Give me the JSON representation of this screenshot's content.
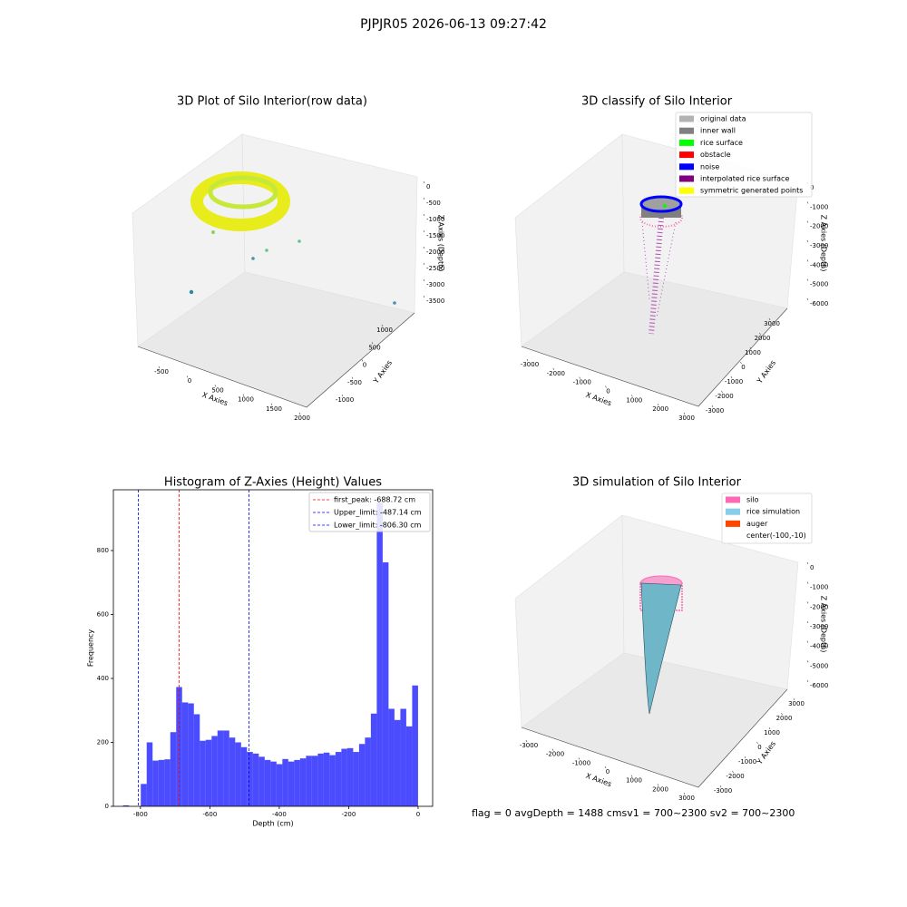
{
  "title": "PJPJR05 2026-06-13 09:27:42",
  "footer": "flag = 0     avgDepth = 1488 cmsv1 = 700~2300  sv2 = 700~2300",
  "chart_data": [
    {
      "type": "scatter3d",
      "title": "3D Plot of Silo Interior(row data)",
      "xlabel": "X Axies",
      "ylabel": "Y Axies",
      "zlabel": "Z Axies (Depth)",
      "xticks": [
        -500,
        0,
        500,
        1000,
        1500,
        2000
      ],
      "yticks": [
        -1000,
        -500,
        0,
        500,
        1000
      ],
      "zticks": [
        0,
        -500,
        -1000,
        -1500,
        -2000,
        -2500,
        -3000,
        -3500
      ]
    },
    {
      "type": "scatter3d",
      "title": "3D classify of Silo Interior",
      "xlabel": "X Axies",
      "ylabel": "Y Axies",
      "zlabel": "Z Axies (Depth)",
      "xticks": [
        -3000,
        -2000,
        -1000,
        0,
        1000,
        2000,
        3000
      ],
      "yticks": [
        -3000,
        -2000,
        -1000,
        0,
        1000,
        2000,
        3000
      ],
      "zticks": [
        0,
        -1000,
        -2000,
        -3000,
        -4000,
        -5000,
        -6000
      ],
      "legend": [
        {
          "name": "original data",
          "color": "#b3b3b3"
        },
        {
          "name": "inner wall",
          "color": "#808080"
        },
        {
          "name": "rice surface",
          "color": "#00ff00"
        },
        {
          "name": "obstacle",
          "color": "#ff0000"
        },
        {
          "name": "noise",
          "color": "#0000ff"
        },
        {
          "name": "interpolated rice surface",
          "color": "#800080"
        },
        {
          "name": "symmetric generated points",
          "color": "#ffff00"
        }
      ]
    },
    {
      "type": "histogram",
      "title": "Histogram of Z-Axies (Height) Values",
      "xlabel": "Depth (cm)",
      "ylabel": "Frequency",
      "color": "#0000ff",
      "bins": [
        -850,
        -833,
        -816,
        -799,
        -782,
        -765,
        -748,
        -731,
        -714,
        -697,
        -680,
        -663,
        -646,
        -629,
        -612,
        -595,
        -578,
        -561,
        -544,
        -527,
        -510,
        -493,
        -476,
        -459,
        -442,
        -425,
        -408,
        -391,
        -374,
        -357,
        -340,
        -323,
        -306,
        -289,
        -272,
        -255,
        -238,
        -221,
        -204,
        -187,
        -170,
        -153,
        -136,
        -119,
        -102,
        -85,
        -68,
        -51,
        -34,
        -17,
        0
      ],
      "values": [
        3,
        0,
        0,
        70,
        200,
        143,
        145,
        147,
        232,
        373,
        325,
        322,
        288,
        205,
        208,
        220,
        237,
        237,
        215,
        200,
        185,
        170,
        165,
        155,
        145,
        140,
        132,
        148,
        140,
        145,
        150,
        158,
        158,
        165,
        168,
        160,
        170,
        180,
        182,
        170,
        195,
        215,
        290,
        950,
        763,
        305,
        270,
        305,
        250,
        378
      ],
      "xlim": [
        -878,
        42
      ],
      "ylim": [
        0,
        990
      ],
      "xticks": [
        -800,
        -600,
        -400,
        -200,
        0
      ],
      "yticks": [
        0,
        200,
        400,
        600,
        800
      ],
      "vlines": [
        {
          "value": -688.72,
          "label": "first_peak: -688.72 cm",
          "color": "#ff0000"
        },
        {
          "value": -487.14,
          "label": "Upper_limit: -487.14 cm",
          "color": "#0000ff"
        },
        {
          "value": -806.3,
          "label": "Lower_limit: -806.30 cm",
          "color": "#0000ff"
        }
      ]
    },
    {
      "type": "scatter3d",
      "title": "3D simulation of Silo Interior",
      "xlabel": "X Axies",
      "ylabel": "Y Axies",
      "zlabel": "Z Axies (Depth)",
      "xticks": [
        -3000,
        -2000,
        -1000,
        0,
        1000,
        2000,
        3000
      ],
      "yticks": [
        -3000,
        -2000,
        -1000,
        0,
        1000,
        2000,
        3000
      ],
      "zticks": [
        0,
        -1000,
        -2000,
        -3000,
        -4000,
        -5000,
        -6000
      ],
      "legend": [
        {
          "name": "silo",
          "color": "#ff69b4"
        },
        {
          "name": "rice simulation",
          "color": "#87ceeb"
        },
        {
          "name": "auger",
          "color": "#ff4500"
        },
        {
          "name": "center(-100,-10)",
          "color": null
        }
      ]
    }
  ]
}
